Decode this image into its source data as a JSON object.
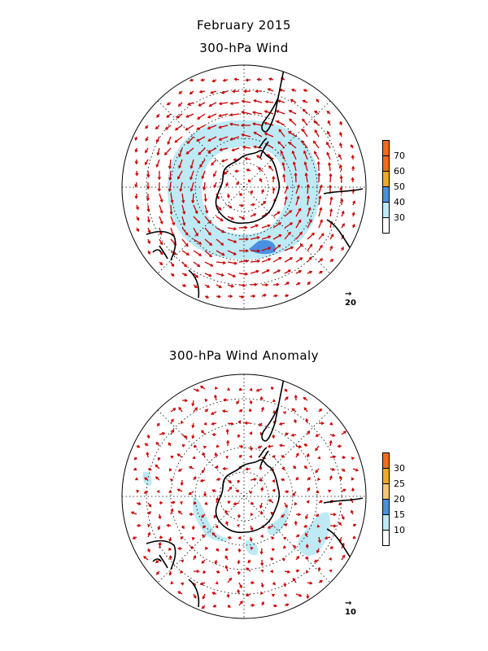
{
  "titles": {
    "date": "February 2015",
    "panel1": "300-hPa Wind",
    "panel2": "300-hPa Wind Anomaly"
  },
  "panel1": {
    "legend": {
      "labels": [
        "30",
        "40",
        "50",
        "60",
        "70"
      ],
      "colors": [
        "#ffffff",
        "#bdeaf5",
        "#4a90e2",
        "#f5a52a",
        "#f06c1a",
        "#f06c1a"
      ]
    },
    "reference_vector": "20",
    "shading": [
      {
        "level": "30-40",
        "color": "#bdeaf5",
        "region": "circumpolar jet ring"
      },
      {
        "level": "40-50",
        "color": "#4a90e2",
        "region": "south of Australia"
      }
    ]
  },
  "panel2": {
    "legend": {
      "labels": [
        "10",
        "15",
        "20",
        "25",
        "30"
      ],
      "colors": [
        "#ffffff",
        "#bdeaf5",
        "#4a90e2",
        "#f5c870",
        "#f5a52a",
        "#f06c1a"
      ]
    },
    "reference_vector": "10",
    "shading": [
      {
        "level": "10-15",
        "color": "#bdeaf5",
        "region": "scattered patches around Antarctica"
      }
    ]
  },
  "colors": {
    "vector": "#cc0000",
    "coast": "#000000",
    "grid": "#000000"
  }
}
